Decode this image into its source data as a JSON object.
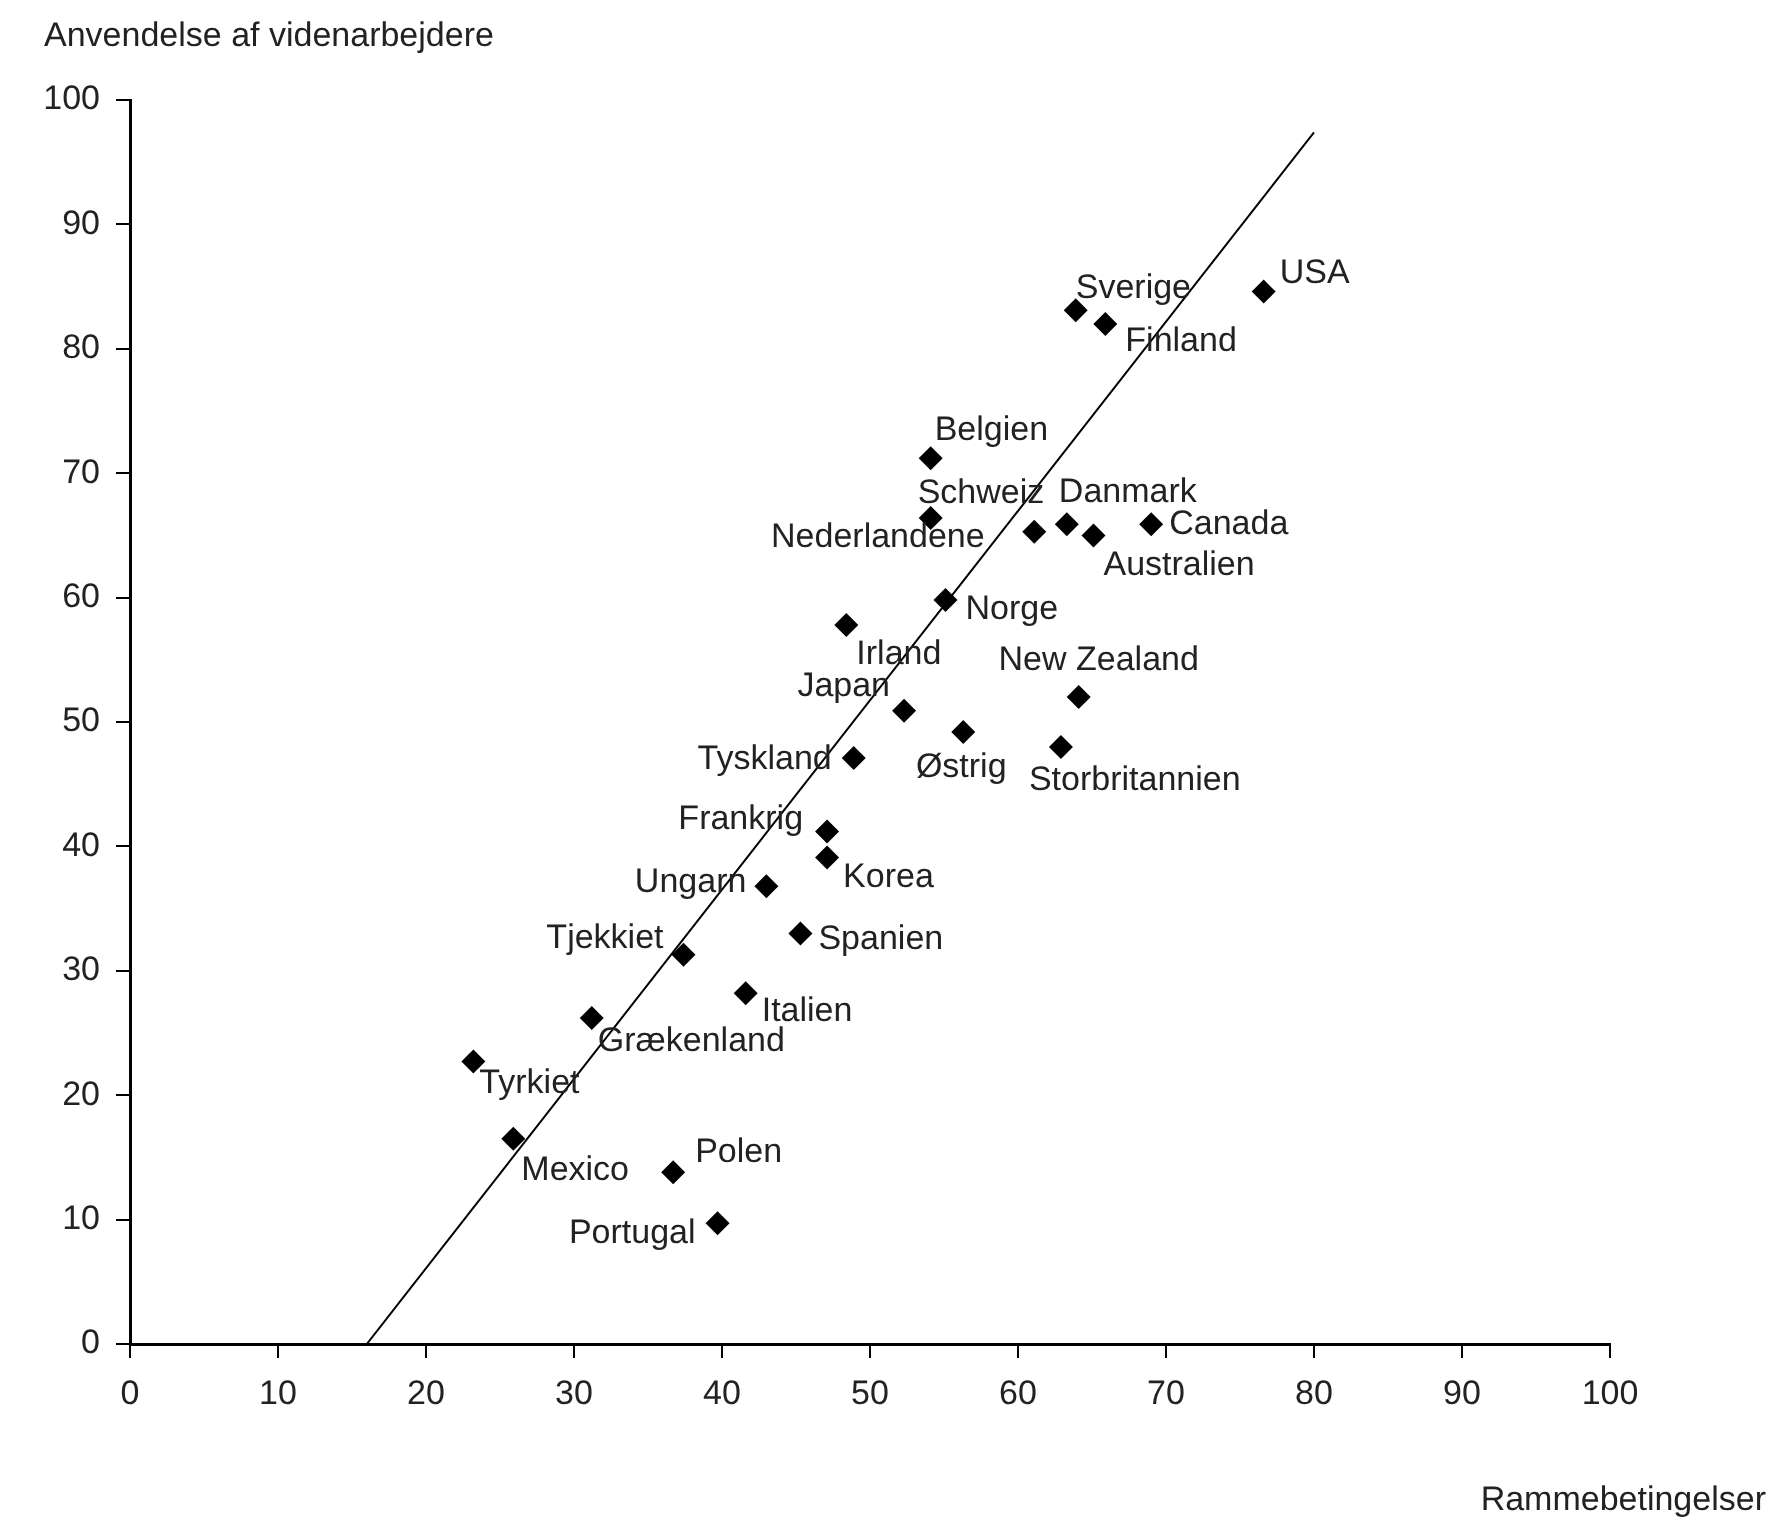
{
  "chart_data": {
    "type": "scatter",
    "xlabel": "Rammebetingelser",
    "ylabel": "Anvendelse af videnarbejdere",
    "xlim": [
      0,
      100
    ],
    "ylim": [
      0,
      100
    ],
    "xticks": [
      0,
      10,
      20,
      30,
      40,
      50,
      60,
      70,
      80,
      90,
      100
    ],
    "yticks": [
      0,
      10,
      20,
      30,
      40,
      50,
      60,
      70,
      80,
      90,
      100
    ],
    "grid": false,
    "legend": false,
    "marker": "diamond",
    "series": [
      {
        "color": "#000000",
        "x": [
          76.6,
          63.9,
          65.9,
          54.1,
          54.1,
          61.1,
          63.3,
          65.1,
          69.0,
          55.1,
          48.4,
          64.1,
          52.3,
          56.3,
          62.9,
          48.9,
          47.1,
          47.1,
          43.0,
          45.3,
          37.4,
          41.6,
          31.2,
          23.2,
          25.9,
          36.7,
          39.7
        ],
        "values": [
          84.6,
          83.1,
          82.0,
          71.2,
          66.4,
          65.3,
          65.9,
          65.0,
          65.9,
          59.8,
          57.8,
          52.0,
          50.9,
          49.2,
          48.0,
          47.1,
          41.2,
          39.1,
          36.8,
          33.0,
          31.3,
          28.2,
          26.2,
          22.7,
          16.5,
          13.8,
          9.7
        ]
      },
      {
        "type": "line",
        "color": "#000000",
        "x": [
          16,
          80
        ],
        "values": [
          0,
          97.4
        ],
        "line_style": "solid",
        "marker": "none"
      }
    ],
    "annotations": [
      {
        "text": "USA",
        "x": 76.6,
        "y": 84.6
      },
      {
        "text": "Sverige",
        "x": 63.9,
        "y": 83.1
      },
      {
        "text": "Finland",
        "x": 65.9,
        "y": 82.0
      },
      {
        "text": "Belgien",
        "x": 54.1,
        "y": 71.2
      },
      {
        "text": "Nederlandene",
        "x": 54.1,
        "y": 66.4
      },
      {
        "text": "Schweiz",
        "x": 61.1,
        "y": 65.3
      },
      {
        "text": "Danmark",
        "x": 63.3,
        "y": 65.9
      },
      {
        "text": "Australien",
        "x": 65.1,
        "y": 65.0
      },
      {
        "text": "Canada",
        "x": 69.0,
        "y": 65.9
      },
      {
        "text": "Norge",
        "x": 55.1,
        "y": 59.8
      },
      {
        "text": "Irland",
        "x": 48.4,
        "y": 57.8
      },
      {
        "text": "New Zealand",
        "x": 64.1,
        "y": 52.0
      },
      {
        "text": "Japan",
        "x": 52.3,
        "y": 50.9
      },
      {
        "text": "Østrig",
        "x": 56.3,
        "y": 49.2
      },
      {
        "text": "Storbritannien",
        "x": 62.9,
        "y": 48.0
      },
      {
        "text": "Tyskland",
        "x": 48.9,
        "y": 47.1
      },
      {
        "text": "Frankrig",
        "x": 47.1,
        "y": 41.2
      },
      {
        "text": "Korea",
        "x": 47.1,
        "y": 39.1
      },
      {
        "text": "Ungarn",
        "x": 43.0,
        "y": 36.8
      },
      {
        "text": "Spanien",
        "x": 45.3,
        "y": 33.0
      },
      {
        "text": "Tjekkiet",
        "x": 37.4,
        "y": 31.3
      },
      {
        "text": "Italien",
        "x": 41.6,
        "y": 28.2
      },
      {
        "text": "Grækenland",
        "x": 31.2,
        "y": 26.2
      },
      {
        "text": "Tyrkiet",
        "x": 23.2,
        "y": 22.7
      },
      {
        "text": "Mexico",
        "x": 25.9,
        "y": 16.5
      },
      {
        "text": "Polen",
        "x": 36.7,
        "y": 13.8
      },
      {
        "text": "Portugal",
        "x": 39.7,
        "y": 9.7
      }
    ]
  }
}
